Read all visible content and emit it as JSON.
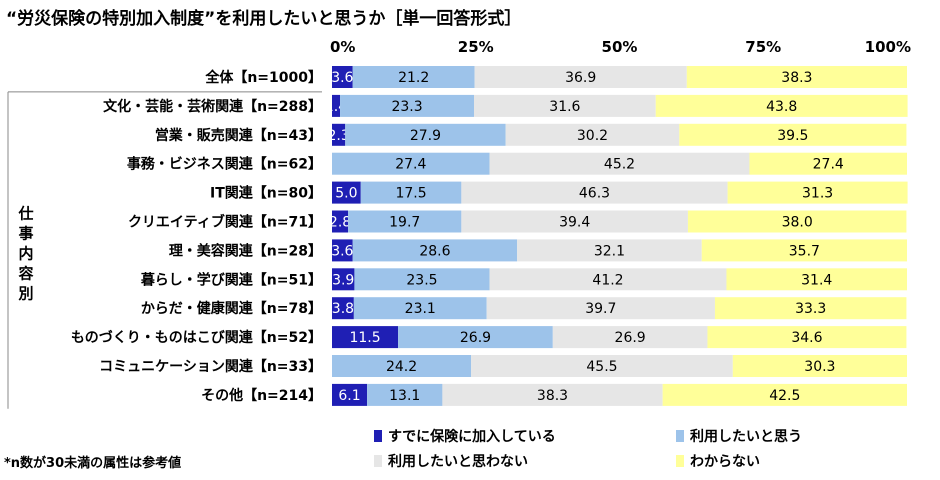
{
  "chart_data": {
    "type": "bar",
    "orientation": "horizontal",
    "stacked": true,
    "title": "“労災保険の特別加入制度”を利用したいと思うか［単一回答形式］",
    "x_ticks": [
      "0%",
      "25%",
      "50%",
      "75%",
      "100%"
    ],
    "xlim": [
      0,
      100
    ],
    "group_label": "仕事内容別",
    "categories": [
      "全体【n=1000】",
      "文化・芸能・芸術関連【n=288】",
      "営業・販売関連【n=43】",
      "事務・ビジネス関連【n=62】",
      "IT関連【n=80】",
      "クリエイティブ関連【n=71】",
      "理・美容関連【n=28】",
      "暮らし・学び関連【n=51】",
      "からだ・健康関連【n=78】",
      "ものづくり・ものはこび関連【n=52】",
      "コミュニケーション関連【n=33】",
      "その他【n=214】"
    ],
    "series": [
      {
        "name": "すでに保険に加入している",
        "color": "#1f1fb4",
        "values": [
          3.6,
          1.4,
          2.3,
          0,
          5.0,
          2.8,
          3.6,
          3.9,
          3.8,
          11.5,
          0,
          6.1
        ],
        "labels": [
          "3.6",
          "1.4",
          "2.3",
          "",
          "5.0",
          "2.8",
          "3.6",
          "3.9",
          "3.8",
          "11.5",
          "",
          "6.1"
        ]
      },
      {
        "name": "利用したいと思う",
        "color": "#9dc3ea",
        "values": [
          21.2,
          23.3,
          27.9,
          27.4,
          17.5,
          19.7,
          28.6,
          23.5,
          23.1,
          26.9,
          24.2,
          13.1
        ],
        "labels": [
          "21.2",
          "23.3",
          "27.9",
          "27.4",
          "17.5",
          "19.7",
          "28.6",
          "23.5",
          "23.1",
          "26.9",
          "24.2",
          "13.1"
        ]
      },
      {
        "name": "利用したいと思わない",
        "color": "#e6e6e6",
        "values": [
          36.9,
          31.6,
          30.2,
          45.2,
          46.3,
          39.4,
          32.1,
          41.2,
          39.7,
          26.9,
          45.5,
          38.3
        ],
        "labels": [
          "36.9",
          "31.6",
          "30.2",
          "45.2",
          "46.3",
          "39.4",
          "32.1",
          "41.2",
          "39.7",
          "26.9",
          "45.5",
          "38.3"
        ]
      },
      {
        "name": "わからない",
        "color": "#ffff99",
        "values": [
          38.3,
          43.8,
          39.5,
          27.4,
          31.3,
          38.0,
          35.7,
          31.4,
          33.3,
          34.6,
          30.3,
          42.5
        ],
        "labels": [
          "38.3",
          "43.8",
          "39.5",
          "27.4",
          "31.3",
          "38.0",
          "35.7",
          "31.4",
          "33.3",
          "34.6",
          "30.3",
          "42.5"
        ]
      }
    ],
    "legend_position": "bottom",
    "footnote": "*n数が30未満の属性は参考値"
  }
}
